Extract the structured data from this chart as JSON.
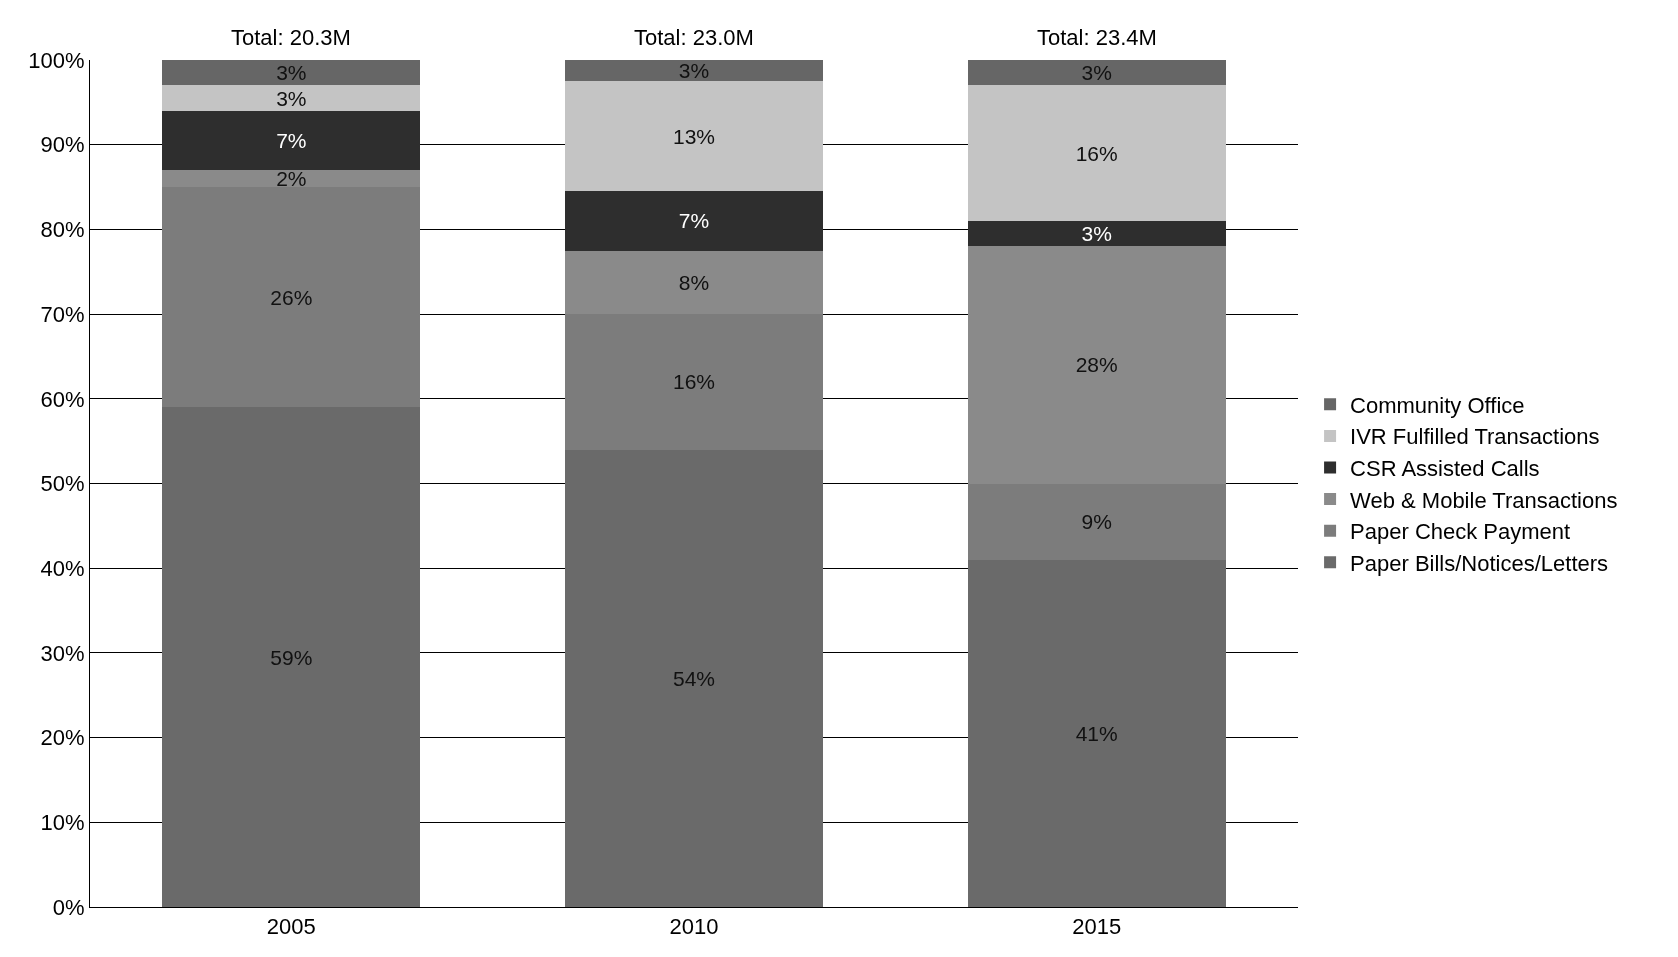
{
  "chart_data": {
    "type": "bar",
    "stacked": true,
    "categories": [
      "2005",
      "2010",
      "2015"
    ],
    "series": [
      {
        "name": "Paper Bills/Notices/Letters",
        "color": "#6a6a6a",
        "values": [
          59,
          54,
          41
        ],
        "value_labels": [
          "59%",
          "54%",
          "41%"
        ]
      },
      {
        "name": "Paper Check Payment",
        "color": "#7c7c7c",
        "values": [
          26,
          16,
          9
        ],
        "value_labels": [
          "26%",
          "16%",
          "9%"
        ]
      },
      {
        "name": "Web & Mobile Transactions",
        "color": "#8a8a8a",
        "values": [
          2,
          7.5,
          28
        ],
        "value_labels": [
          "2%",
          "8%",
          "28%"
        ]
      },
      {
        "name": "CSR Assisted Calls",
        "color": "#2e2e2e",
        "values": [
          7,
          7,
          3
        ],
        "value_labels": [
          "7%",
          "7%",
          "3%"
        ]
      },
      {
        "name": "IVR Fulfilled Transactions",
        "color": "#c4c4c4",
        "values": [
          3,
          13,
          16
        ],
        "value_labels": [
          "3%",
          "13%",
          "16%"
        ]
      },
      {
        "name": "Community Office",
        "color": "#666666",
        "values": [
          3,
          2.5,
          3
        ],
        "value_labels": [
          "3%",
          "3%",
          "3%"
        ]
      }
    ],
    "annotations": [
      {
        "text": "Total: 20.3M",
        "x": "2005",
        "y": 100
      },
      {
        "text": "Total: 23.0M",
        "x": "2010",
        "y": 100
      },
      {
        "text": "Total: 23.4M",
        "x": "2015",
        "y": 100
      }
    ],
    "ylim": [
      0,
      100
    ],
    "yticks": [
      {
        "value": 0,
        "label": "0%"
      },
      {
        "value": 10,
        "label": "10%"
      },
      {
        "value": 20,
        "label": "20%"
      },
      {
        "value": 30,
        "label": "30%"
      },
      {
        "value": 40,
        "label": "40%"
      },
      {
        "value": 50,
        "label": "50%"
      },
      {
        "value": 60,
        "label": "60%"
      },
      {
        "value": 70,
        "label": "70%"
      },
      {
        "value": 80,
        "label": "80%"
      },
      {
        "value": 90,
        "label": "90%"
      },
      {
        "value": 100,
        "label": "100%"
      }
    ],
    "grid": "y",
    "legend": "right"
  }
}
